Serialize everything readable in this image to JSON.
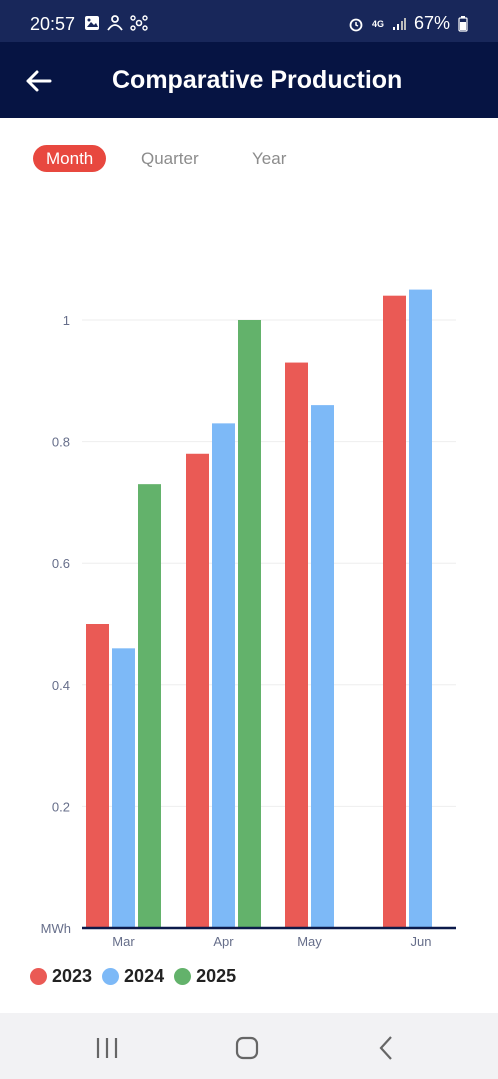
{
  "status_bar": {
    "time": "20:57",
    "left_icons": [
      "gallery-icon",
      "activity-icon",
      "network-icon"
    ],
    "network": "4G",
    "battery": "67%"
  },
  "app_bar": {
    "title": "Comparative Production",
    "back_icon": "back-arrow-icon"
  },
  "tabs": [
    {
      "label": "Month",
      "active": true
    },
    {
      "label": "Quarter",
      "active": false
    },
    {
      "label": "Year",
      "active": false
    }
  ],
  "chart_data": {
    "type": "bar",
    "categories": [
      "Mar",
      "Apr",
      "May",
      "Jun"
    ],
    "series": [
      {
        "name": "2023",
        "color": "#ea5a55",
        "values": [
          0.5,
          0.78,
          0.93,
          1.04
        ]
      },
      {
        "name": "2024",
        "color": "#7db9f7",
        "values": [
          0.46,
          0.83,
          0.86,
          1.05
        ]
      },
      {
        "name": "2025",
        "color": "#63b26b",
        "values": [
          0.73,
          1.0,
          null,
          null
        ]
      }
    ],
    "y_ticks": [
      "MWh",
      "0.2",
      "0.4",
      "0.6",
      "0.8",
      "1"
    ],
    "y_tick_values": [
      0,
      0.2,
      0.4,
      0.6,
      0.8,
      1
    ],
    "ylim": [
      0,
      1.05
    ],
    "grid": true,
    "legend_position": "bottom-left"
  },
  "nav_bar": {
    "recent_icon": "recent-apps-icon",
    "home_icon": "home-icon",
    "back_icon": "nav-back-icon"
  }
}
